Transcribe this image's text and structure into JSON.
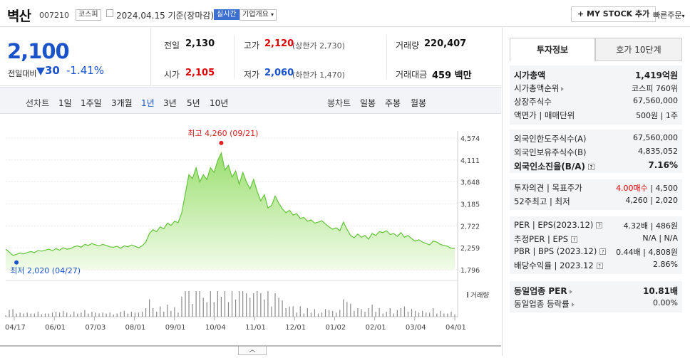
{
  "header": {
    "name": "벽산",
    "code": "007210",
    "market": "코스피",
    "date": "2024.04.15",
    "basis": "기준(장마감)",
    "realtime": "실시간",
    "overview": "기업개요",
    "mystock": "+ MY STOCK 추가",
    "quick_order": "빠른주문"
  },
  "summary": {
    "price": "2,100",
    "change_label": "전일대비",
    "change": "30",
    "change_pct": "-1.41%"
  },
  "stats": {
    "prev_label": "전일",
    "prev": "2,130",
    "high_label": "고가",
    "high": "2,120",
    "upper_limit": "(상한가 2,730)",
    "volume_label": "거래량",
    "volume": "220,407",
    "open_label": "시가",
    "open": "2,105",
    "low_label": "저가",
    "low": "2,060",
    "lower_limit": "(하한가 1,470)",
    "amount_label": "거래대금",
    "amount": "459 백만"
  },
  "periods": {
    "line_label": "선차트",
    "line": [
      "1일",
      "1주일",
      "3개월",
      "1년",
      "3년",
      "5년",
      "10년"
    ],
    "active": "1년",
    "candle_label": "봉차트",
    "candle": [
      "일봉",
      "주봉",
      "월봉"
    ]
  },
  "chart_data": {
    "type": "area",
    "y_ticks": [
      "4,574",
      "4,111",
      "3,648",
      "3,185",
      "2,722",
      "2,259",
      "1,796"
    ],
    "ylim": [
      1796,
      4574
    ],
    "x_ticks": [
      "04/17",
      "06/01",
      "07/03",
      "08/01",
      "09/01",
      "10/04",
      "11/01",
      "12/01",
      "01/02",
      "02/01",
      "03/04",
      "04/01"
    ],
    "high_label": "최고 4,260 (09/21)",
    "low_label": "최저 2,020 (04/27)",
    "volume_label": "거래량",
    "values": [
      2230,
      2170,
      2100,
      2120,
      2150,
      2130,
      2160,
      2180,
      2160,
      2200,
      2190,
      2210,
      2230,
      2200,
      2240,
      2210,
      2260,
      2230,
      2240,
      2280,
      2300,
      2270,
      2330,
      2310,
      2350,
      2320,
      2300,
      2330,
      2310,
      2280,
      2270,
      2290,
      2250,
      2300,
      2280,
      2320,
      2290,
      2260,
      2300,
      2380,
      2560,
      2640,
      2600,
      2700,
      2660,
      2780,
      2730,
      2820,
      2790,
      3000,
      3400,
      3800,
      3720,
      3950,
      3650,
      3800,
      3700,
      3950,
      3850,
      4100,
      4260,
      3900,
      4000,
      3750,
      3880,
      3600,
      3850,
      3650,
      3500,
      3700,
      3450,
      3250,
      3380,
      3100,
      3150,
      3350,
      3200,
      3080,
      3000,
      3050,
      2950,
      2980,
      2880,
      2900,
      2820,
      2850,
      2780,
      2800,
      2830,
      2760,
      2700,
      2650,
      2680,
      2620,
      2800,
      2650,
      2520,
      2470,
      2550,
      2480,
      2520,
      2440,
      2560,
      2520,
      2600,
      2580,
      2620,
      2540,
      2560,
      2500,
      2580,
      2480,
      2520,
      2450,
      2400,
      2430,
      2380,
      2350,
      2320,
      2400,
      2380,
      2330,
      2310,
      2290,
      2250,
      2240
    ]
  },
  "panel": {
    "tabs": [
      "투자정보",
      "호가 10단계"
    ],
    "b1": [
      {
        "l": "시가총액",
        "v": "1,419억원",
        "bold": true
      },
      {
        "l": "시가총액순위",
        "v": "코스피 760위",
        "arrow": true
      },
      {
        "l": "상장주식수",
        "v": "67,560,000"
      },
      {
        "l": "액면가 | 매매단위",
        "v": "500원 | 1주"
      }
    ],
    "b2": [
      {
        "l": "외국인한도주식수(A)",
        "v": "67,560,000"
      },
      {
        "l": "외국인보유주식수(B)",
        "v": "4,835,052"
      },
      {
        "l": "외국인소진율(B/A)",
        "v": "7.16%",
        "bold": true,
        "q": true
      }
    ],
    "b3": [
      {
        "l": "투자의견 | 목표주가",
        "v1": "4.00매수",
        "v2": " | 4,500"
      },
      {
        "l": "52주최고 | 최저",
        "v": "4,260 | 2,020"
      }
    ],
    "b4": [
      {
        "l": "PER | EPS(2023.12)",
        "v": "4.32배 | 486원",
        "q": true
      },
      {
        "l": "추정PER | EPS",
        "v": "N/A | N/A",
        "q": true
      },
      {
        "l": "PBR | BPS (2023.12)",
        "v": "0.44배 | 4,808원",
        "q": true
      },
      {
        "l": "배당수익률 | 2023.12",
        "v": "2.86%",
        "q": true
      }
    ],
    "b5": [
      {
        "l": "동일업종 PER",
        "v": "10.81배",
        "bold": true,
        "arrow": true
      },
      {
        "l": "동일업종 등락률",
        "v": "0.00%",
        "arrow": true
      }
    ]
  }
}
